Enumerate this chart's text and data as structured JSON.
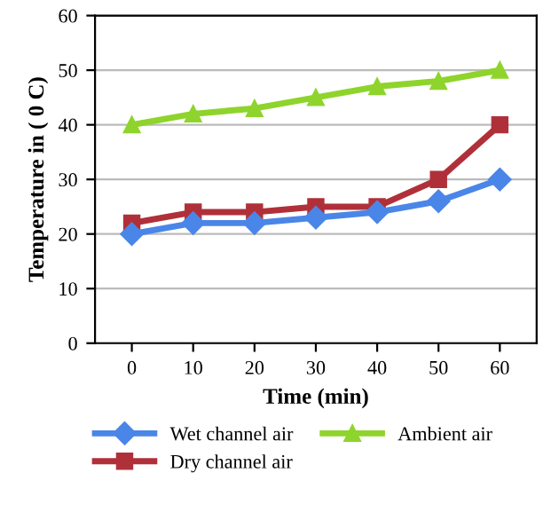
{
  "chart_data": {
    "type": "line",
    "xlabel": "Time (min)",
    "ylabel": "Temperature in ( 0 C)",
    "categories": [
      "0",
      "10",
      "20",
      "30",
      "40",
      "50",
      "60"
    ],
    "ylim": [
      0,
      60
    ],
    "yticks": [
      0,
      10,
      20,
      30,
      40,
      50,
      60
    ],
    "grid": "y",
    "legend": "bottom",
    "series": [
      {
        "name": "Wet channel air",
        "color": "#4a86e8",
        "marker": "diamond",
        "values": [
          20,
          22,
          22,
          23,
          24,
          26,
          30
        ]
      },
      {
        "name": "Dry channel air",
        "color": "#b0303a",
        "marker": "square",
        "values": [
          22,
          24,
          24,
          25,
          25,
          30,
          40
        ]
      },
      {
        "name": "Ambient air",
        "color": "#8ed42c",
        "marker": "triangle",
        "values": [
          40,
          42,
          43,
          45,
          47,
          48,
          50
        ]
      }
    ]
  }
}
